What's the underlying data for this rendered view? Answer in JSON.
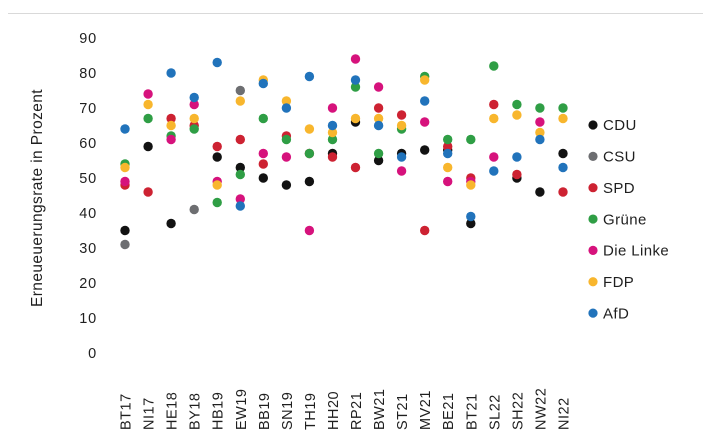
{
  "chart_data": {
    "type": "scatter",
    "title": "",
    "xlabel": "",
    "ylabel": "Erneueuerungsrate in Prozent",
    "ylim": [
      0,
      90
    ],
    "yticks": [
      90,
      80,
      70,
      60,
      50,
      40,
      30,
      20,
      10,
      0
    ],
    "grid": false,
    "legend_position": "right",
    "marker": "circle",
    "categories": [
      "BT17",
      "NI17",
      "HE18",
      "BY18",
      "HB19",
      "EW19",
      "BB19",
      "SN19",
      "TH19",
      "HH20",
      "RP21",
      "BW21",
      "ST21",
      "MV21",
      "BE21",
      "BT21",
      "SL22",
      "SH22",
      "NW22",
      "NI22"
    ],
    "series": [
      {
        "name": "CDU",
        "color": "#121212",
        "values": [
          35,
          59,
          37,
          null,
          56,
          53,
          50,
          48,
          49,
          57,
          66,
          55,
          57,
          58,
          58,
          37,
          null,
          50,
          46,
          57
        ]
      },
      {
        "name": "CSU",
        "color": "#6d6e71",
        "values": [
          31,
          null,
          null,
          41,
          null,
          75,
          null,
          null,
          null,
          null,
          null,
          null,
          null,
          null,
          null,
          null,
          null,
          null,
          null,
          null
        ]
      },
      {
        "name": "SPD",
        "color": "#cd2232",
        "values": [
          48,
          46,
          67,
          65,
          59,
          61,
          54,
          62,
          57,
          56,
          53,
          70,
          68,
          35,
          59,
          50,
          71,
          51,
          null,
          46
        ]
      },
      {
        "name": "Grüne",
        "color": "#2f9e45",
        "values": [
          54,
          67,
          62,
          64,
          43,
          51,
          67,
          61,
          57,
          61,
          76,
          57,
          64,
          79,
          61,
          61,
          82,
          71,
          70,
          70
        ]
      },
      {
        "name": "Die Linke",
        "color": "#d6127c",
        "values": [
          49,
          74,
          61,
          71,
          49,
          44,
          57,
          56,
          35,
          70,
          84,
          76,
          52,
          66,
          49,
          49,
          56,
          null,
          66,
          null
        ]
      },
      {
        "name": "FDP",
        "color": "#f8b62d",
        "values": [
          53,
          71,
          65,
          67,
          48,
          72,
          78,
          72,
          64,
          63,
          67,
          67,
          65,
          78,
          53,
          48,
          67,
          68,
          63,
          67
        ]
      },
      {
        "name": "AfD",
        "color": "#2173bb",
        "values": [
          64,
          null,
          80,
          73,
          83,
          42,
          77,
          70,
          79,
          65,
          78,
          65,
          56,
          72,
          57,
          39,
          52,
          56,
          61,
          53
        ]
      }
    ]
  },
  "style": {
    "background": "#ffffff",
    "text_color": "#1f1f1f",
    "top_border_color": "#d9d9d9"
  }
}
